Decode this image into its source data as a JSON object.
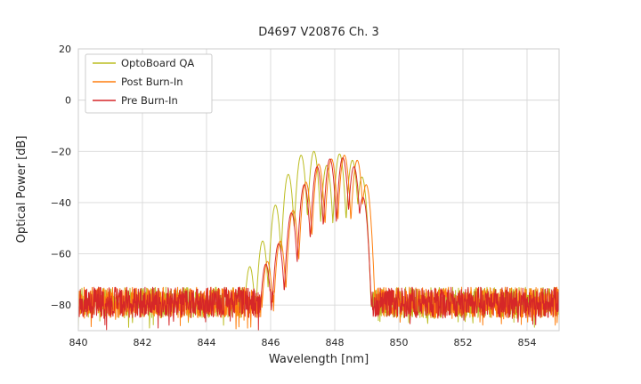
{
  "chart_data": {
    "type": "line",
    "title": "D4697 V20876 Ch. 3",
    "xlabel": "Wavelength [nm]",
    "ylabel": "Optical Power [dB]",
    "xlim": [
      840,
      855
    ],
    "ylim": [
      -90,
      20
    ],
    "xticks": [
      840,
      842,
      844,
      846,
      848,
      850,
      852,
      854
    ],
    "yticks": [
      20,
      0,
      -20,
      -40,
      -60,
      -80
    ],
    "grid": true,
    "legend_position": "upper left",
    "x_resolution_nm": 0.01,
    "mode_parabola_k_db_per_nm2": 620,
    "description": "Optical spectra of VCSEL channel: noise floor near -79 dB with multimode laser comb between ~845.3 and ~849.1 nm peaking near -20 dB",
    "series": [
      {
        "name": "OptoBoard QA",
        "color": "#bcbd22",
        "noise_floor_db": -79,
        "noise_halfband_db": 6,
        "modes_nm_db": [
          [
            845.35,
            -65
          ],
          [
            845.75,
            -55
          ],
          [
            846.15,
            -41
          ],
          [
            846.55,
            -29
          ],
          [
            846.95,
            -21.5
          ],
          [
            847.35,
            -20
          ],
          [
            847.75,
            -25.5
          ],
          [
            848.15,
            -21
          ],
          [
            848.55,
            -23.5
          ],
          [
            848.85,
            -30
          ]
        ]
      },
      {
        "name": "Post Burn-In",
        "color": "#ff7f0e",
        "noise_floor_db": -79,
        "noise_halfband_db": 6,
        "modes_nm_db": [
          [
            845.9,
            -63
          ],
          [
            846.3,
            -55
          ],
          [
            846.7,
            -43
          ],
          [
            847.1,
            -32
          ],
          [
            847.5,
            -25
          ],
          [
            847.9,
            -23
          ],
          [
            848.3,
            -21.5
          ],
          [
            848.7,
            -23.5
          ],
          [
            848.98,
            -33
          ]
        ]
      },
      {
        "name": "Pre Burn-In",
        "color": "#d62728",
        "noise_floor_db": -79,
        "noise_halfband_db": 6,
        "modes_nm_db": [
          [
            845.85,
            -64
          ],
          [
            846.25,
            -56
          ],
          [
            846.65,
            -44
          ],
          [
            847.05,
            -33
          ],
          [
            847.45,
            -26
          ],
          [
            847.85,
            -23
          ],
          [
            848.25,
            -22.5
          ],
          [
            848.6,
            -26
          ],
          [
            848.88,
            -38
          ]
        ]
      }
    ]
  },
  "colors": {
    "background": "#ffffff",
    "grid": "#d8d8d8",
    "spine": "#cccccc",
    "text": "#262626",
    "legend_border": "#cccccc",
    "legend_background": "#ffffff"
  }
}
